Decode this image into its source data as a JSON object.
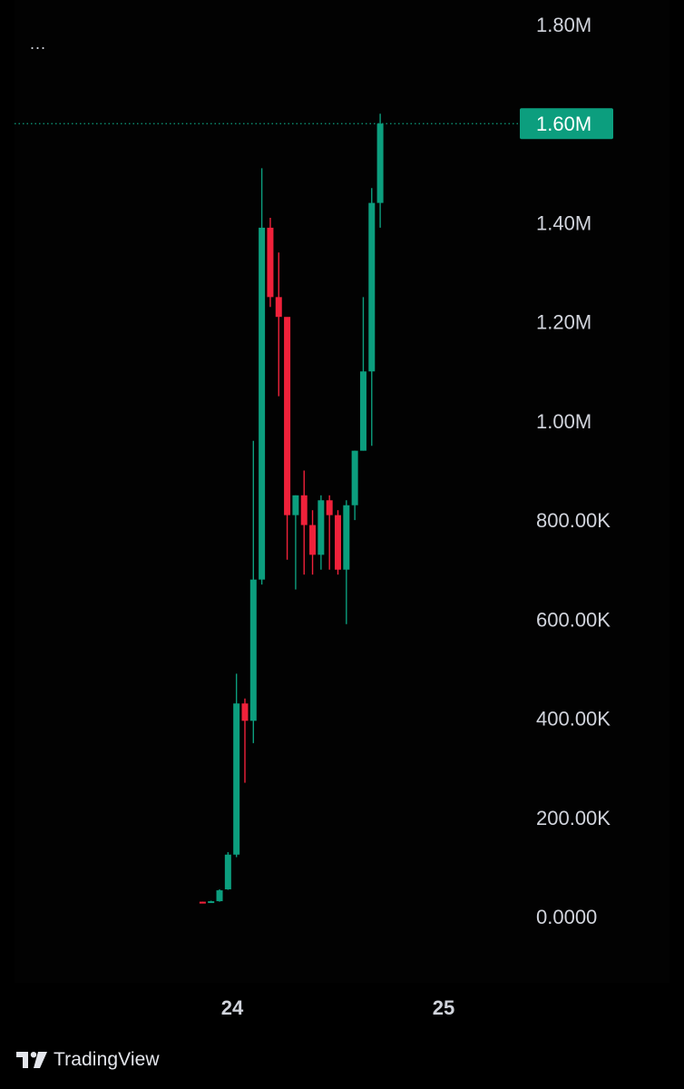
{
  "window": {
    "menu_icon": "ellipsis-icon",
    "menu_text": "..."
  },
  "branding": {
    "logo_icon": "tradingview-logo-icon",
    "name": "TradingView"
  },
  "colors": {
    "background": "#000000",
    "up": "#0c9e7e",
    "down": "#f0213a",
    "axis_text": "#d1d4dc",
    "price_line": "#0c9e7e",
    "price_label_bg": "#0c9e7e"
  },
  "chart_data": {
    "type": "candlestick",
    "title": "",
    "xlabel": "",
    "ylabel": "",
    "ylim": [
      -100000,
      1900000
    ],
    "yticks": [
      {
        "value": 1800000,
        "label": "1.80M"
      },
      {
        "value": 1400000,
        "label": "1.40M"
      },
      {
        "value": 1200000,
        "label": "1.20M"
      },
      {
        "value": 1000000,
        "label": "1.00M"
      },
      {
        "value": 800000,
        "label": "800.00K"
      },
      {
        "value": 600000,
        "label": "600.00K"
      },
      {
        "value": 400000,
        "label": "400.00K"
      },
      {
        "value": 200000,
        "label": "200.00K"
      },
      {
        "value": 0,
        "label": "0.0000"
      }
    ],
    "xticks": [
      {
        "value": 24.0,
        "label": "24"
      },
      {
        "value": 25.0,
        "label": "25"
      }
    ],
    "xlim": [
      23.0,
      26.2
    ],
    "grid": false,
    "current_price": {
      "value": 1600000,
      "label": "1.60M"
    },
    "candles": [
      {
        "t": 23.86,
        "o": 30000,
        "h": 30000,
        "l": 28000,
        "c": 29000
      },
      {
        "t": 23.9,
        "o": 29000,
        "h": 32000,
        "l": 28000,
        "c": 31000
      },
      {
        "t": 23.94,
        "o": 31000,
        "h": 55000,
        "l": 30000,
        "c": 53000
      },
      {
        "t": 23.98,
        "o": 55000,
        "h": 130000,
        "l": 54000,
        "c": 125000
      },
      {
        "t": 24.02,
        "o": 125000,
        "h": 490000,
        "l": 120000,
        "c": 430000
      },
      {
        "t": 24.06,
        "o": 430000,
        "h": 440000,
        "l": 270000,
        "c": 395000
      },
      {
        "t": 24.1,
        "o": 395000,
        "h": 960000,
        "l": 350000,
        "c": 680000
      },
      {
        "t": 24.14,
        "o": 680000,
        "h": 1510000,
        "l": 670000,
        "c": 1390000
      },
      {
        "t": 24.18,
        "o": 1390000,
        "h": 1410000,
        "l": 1230000,
        "c": 1250000
      },
      {
        "t": 24.22,
        "o": 1250000,
        "h": 1340000,
        "l": 1050000,
        "c": 1210000
      },
      {
        "t": 24.26,
        "o": 1210000,
        "h": 1200000,
        "l": 720000,
        "c": 810000
      },
      {
        "t": 24.3,
        "o": 810000,
        "h": 850000,
        "l": 660000,
        "c": 850000
      },
      {
        "t": 24.34,
        "o": 850000,
        "h": 900000,
        "l": 690000,
        "c": 790000
      },
      {
        "t": 24.38,
        "o": 790000,
        "h": 820000,
        "l": 690000,
        "c": 730000
      },
      {
        "t": 24.42,
        "o": 730000,
        "h": 850000,
        "l": 700000,
        "c": 840000
      },
      {
        "t": 24.46,
        "o": 840000,
        "h": 850000,
        "l": 700000,
        "c": 810000
      },
      {
        "t": 24.5,
        "o": 810000,
        "h": 820000,
        "l": 690000,
        "c": 700000
      },
      {
        "t": 24.54,
        "o": 700000,
        "h": 840000,
        "l": 590000,
        "c": 830000
      },
      {
        "t": 24.58,
        "o": 830000,
        "h": 940000,
        "l": 800000,
        "c": 940000
      },
      {
        "t": 24.62,
        "o": 940000,
        "h": 1250000,
        "l": 940000,
        "c": 1100000
      },
      {
        "t": 24.66,
        "o": 1100000,
        "h": 1470000,
        "l": 950000,
        "c": 1440000
      },
      {
        "t": 24.7,
        "o": 1440000,
        "h": 1620000,
        "l": 1390000,
        "c": 1600000
      }
    ]
  }
}
